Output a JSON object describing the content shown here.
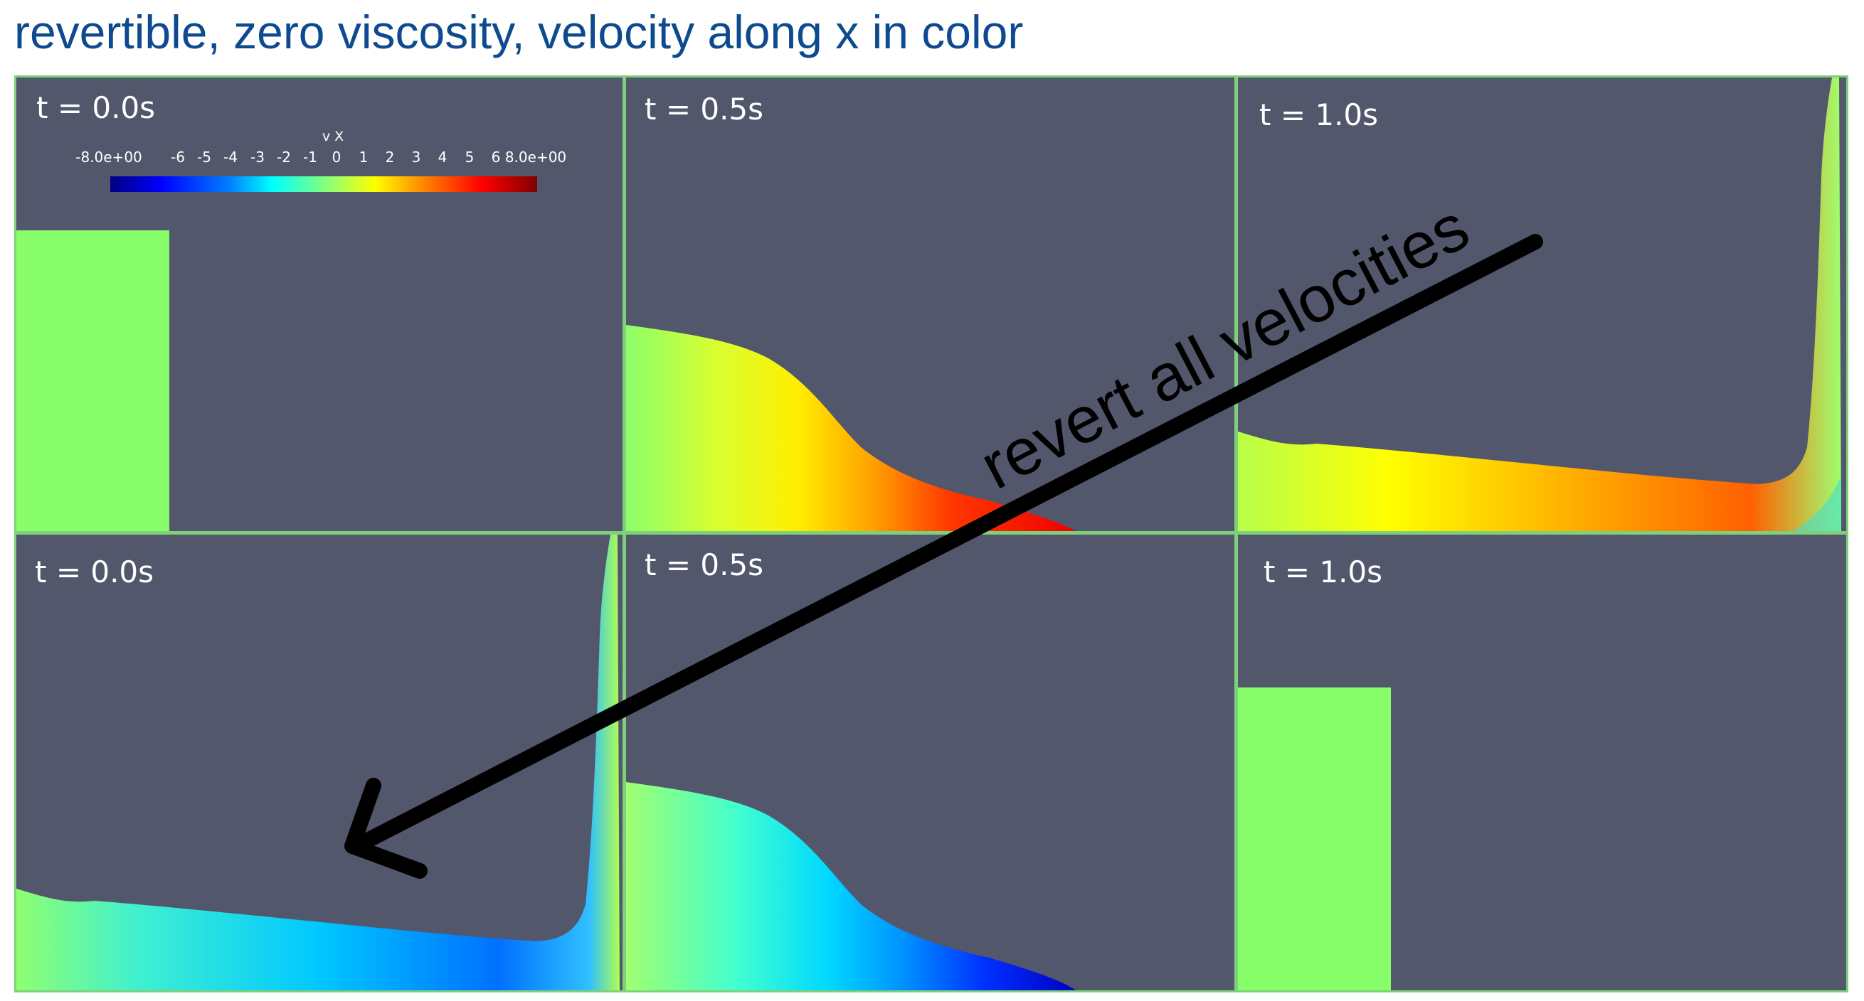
{
  "title": "revertible, zero viscosity, velocity along x in color",
  "colorbar": {
    "label": "v X",
    "ticks": [
      "-8.0e+00",
      "-6",
      "-5",
      "-4",
      "-3",
      "-2",
      "-1",
      "0",
      "1",
      "2",
      "3",
      "4",
      "5",
      "6",
      "8.0e+00"
    ]
  },
  "panels": [
    {
      "time": "t = 0.0s"
    },
    {
      "time": "t = 0.5s"
    },
    {
      "time": "t = 1.0s"
    },
    {
      "time": "t = 0.0s"
    },
    {
      "time": "t = 0.5s"
    },
    {
      "time": "t = 1.0s"
    }
  ],
  "annotation": {
    "text": "revert all velocities"
  },
  "colors": {
    "title": "#0d4a8f",
    "panel_background": "#52576b",
    "fluid_at_rest": "#88ff6a",
    "panel_border": "#7ed07a",
    "arrow": "#000000"
  }
}
